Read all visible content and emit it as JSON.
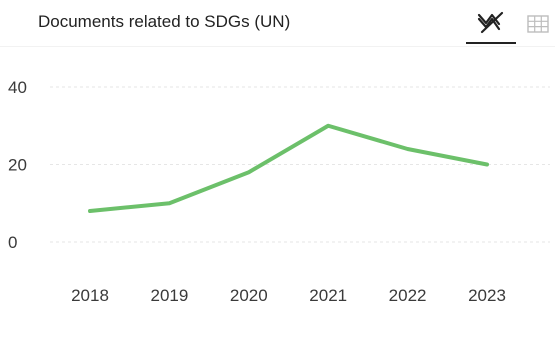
{
  "header": {
    "title": "Documents related to SDGs (UN)"
  },
  "toolbar": {
    "chart_view_icon": "line-chart-icon",
    "table_view_icon": "table-grid-icon",
    "active_view": "chart"
  },
  "colors": {
    "series": "#6cc06a",
    "grid": "#e6e6e6",
    "active_tab": "#222222",
    "inactive_icon": "#bdbdbd"
  },
  "chart_data": {
    "type": "line",
    "title": "Documents related to SDGs (UN)",
    "xlabel": "",
    "ylabel": "",
    "categories": [
      "2018",
      "2019",
      "2020",
      "2021",
      "2022",
      "2023"
    ],
    "series": [
      {
        "values": [
          8,
          10,
          18,
          30,
          24,
          20
        ]
      }
    ],
    "ylim": [
      0,
      40
    ],
    "yticks": [
      0,
      20,
      40
    ],
    "grid": true,
    "legend": "none"
  }
}
